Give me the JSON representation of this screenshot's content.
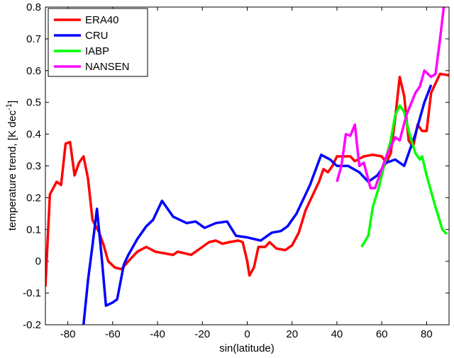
{
  "chart_data": {
    "type": "line",
    "xlabel": "sin(latitude)",
    "ylabel": {
      "text": "temperature trend, [K dec",
      "superscript": "-1",
      "suffix": "]"
    },
    "xlim": [
      -90,
      90
    ],
    "xticks": [
      -80,
      -60,
      -40,
      -20,
      0,
      20,
      40,
      60,
      80
    ],
    "ylim": [
      -0.2,
      0.8
    ],
    "yticks": [
      -0.2,
      -0.1,
      0,
      0.1,
      0.2,
      0.3,
      0.4,
      0.5,
      0.6,
      0.7,
      0.8
    ],
    "legend": "upper left",
    "series": [
      {
        "name": "ERA40",
        "color": "#ff0000",
        "x": [
          -90,
          -88,
          -85,
          -83,
          -81,
          -79,
          -77,
          -75,
          -73,
          -71,
          -69,
          -66,
          -64,
          -62,
          -59,
          -56,
          -53,
          -49,
          -45,
          -41,
          -37,
          -33,
          -31,
          -28,
          -25,
          -21,
          -17,
          -14,
          -11,
          -8,
          -4,
          -2,
          0,
          1,
          3,
          5,
          8,
          10,
          13,
          17,
          20,
          23,
          26,
          30,
          32,
          34,
          36,
          38,
          40,
          43,
          46,
          48,
          52,
          56,
          60,
          62,
          64,
          66,
          68,
          70,
          72,
          74,
          76,
          78,
          80,
          82,
          86,
          90
        ],
        "values": [
          -0.08,
          0.21,
          0.25,
          0.24,
          0.37,
          0.375,
          0.27,
          0.31,
          0.33,
          0.26,
          0.13,
          0.09,
          0.05,
          0.0,
          -0.02,
          -0.025,
          0.0,
          0.03,
          0.045,
          0.03,
          0.025,
          0.02,
          0.03,
          0.025,
          0.02,
          0.04,
          0.06,
          0.065,
          0.055,
          0.06,
          0.065,
          0.06,
          0.0,
          -0.045,
          -0.02,
          0.045,
          0.045,
          0.06,
          0.04,
          0.035,
          0.05,
          0.09,
          0.16,
          0.22,
          0.25,
          0.29,
          0.28,
          0.3,
          0.33,
          0.33,
          0.33,
          0.315,
          0.33,
          0.335,
          0.33,
          0.31,
          0.34,
          0.45,
          0.58,
          0.52,
          0.38,
          0.36,
          0.43,
          0.41,
          0.41,
          0.53,
          0.59,
          0.585
        ]
      },
      {
        "name": "CRU",
        "color": "#0000ff",
        "x": [
          -73,
          -71,
          -69,
          -67,
          -65,
          -63,
          -60,
          -58,
          -55,
          -53,
          -49,
          -45,
          -42,
          -38,
          -36,
          -33,
          -30,
          -27,
          -23,
          -19,
          -14,
          -9,
          -5,
          0,
          6,
          11,
          15,
          18,
          22,
          28,
          33,
          37,
          40,
          45,
          50,
          54,
          58,
          62,
          66,
          70,
          75,
          79,
          82
        ],
        "values": [
          -0.2,
          -0.06,
          0.05,
          0.165,
          0.02,
          -0.14,
          -0.13,
          -0.12,
          -0.01,
          0.02,
          0.07,
          0.11,
          0.13,
          0.19,
          0.17,
          0.14,
          0.13,
          0.12,
          0.125,
          0.105,
          0.12,
          0.125,
          0.08,
          0.075,
          0.065,
          0.09,
          0.095,
          0.11,
          0.15,
          0.24,
          0.335,
          0.32,
          0.3,
          0.3,
          0.28,
          0.25,
          0.27,
          0.31,
          0.32,
          0.3,
          0.4,
          0.5,
          0.555
        ]
      },
      {
        "name": "IABP",
        "color": "#00ff00",
        "x": [
          51,
          54,
          56,
          59,
          61,
          64,
          66,
          68,
          70,
          72,
          75,
          77,
          78,
          80,
          84,
          87,
          89
        ],
        "values": [
          0.045,
          0.08,
          0.17,
          0.24,
          0.3,
          0.38,
          0.46,
          0.49,
          0.47,
          0.41,
          0.34,
          0.32,
          0.33,
          0.27,
          0.17,
          0.1,
          0.085
        ]
      },
      {
        "name": "NANSEN",
        "color": "#ff00ff",
        "x": [
          40,
          42,
          44,
          46,
          48,
          50,
          52,
          55,
          57,
          59,
          62,
          66,
          68,
          71,
          75,
          77,
          79,
          82,
          84,
          86,
          88
        ],
        "values": [
          0.25,
          0.3,
          0.4,
          0.395,
          0.43,
          0.3,
          0.31,
          0.23,
          0.23,
          0.27,
          0.33,
          0.39,
          0.38,
          0.46,
          0.53,
          0.55,
          0.6,
          0.58,
          0.59,
          0.7,
          0.82
        ]
      }
    ]
  }
}
